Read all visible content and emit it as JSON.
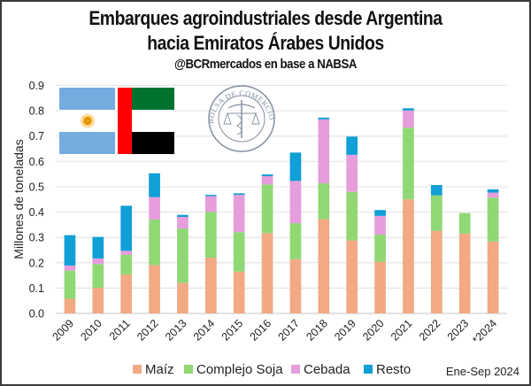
{
  "header": {
    "title_line1": "Embarques agroindustriales desde Argentina",
    "title_line2": "hacia Emiratos Árabes Unidos",
    "subtitle": "@BCRmercados en base a NABSA"
  },
  "decorations": {
    "flags": [
      "argentina-flag",
      "uae-flag"
    ],
    "seal_text": "BOLSA DE COMERCIO DE ROSARIO"
  },
  "note": "Ene-Sep 2024",
  "colors": {
    "Maíz": "#f2a984",
    "Complejo Soja": "#8fd874",
    "Cebada": "#e59ddc",
    "Resto": "#109fd6"
  },
  "chart_data": {
    "type": "bar",
    "stacked": true,
    "title": "Embarques agroindustriales desde Argentina hacia Emiratos Árabes Unidos",
    "subtitle": "@BCRmercados en base a NABSA",
    "xlabel": "",
    "ylabel": "Millones de toneladas",
    "ylim": [
      0,
      0.9
    ],
    "yticks": [
      "0.0",
      "0.1",
      "0.2",
      "0.3",
      "0.4",
      "0.5",
      "0.6",
      "0.7",
      "0.8",
      "0.9"
    ],
    "grid": true,
    "legend_position": "bottom",
    "categories": [
      "2009",
      "2010",
      "2011",
      "2012",
      "2013",
      "2014",
      "2015",
      "2016",
      "2017",
      "2018",
      "2019",
      "2020",
      "2021",
      "2022",
      "2023",
      "*2024"
    ],
    "series": [
      {
        "name": "Maíz",
        "values": [
          0.058,
          0.101,
          0.154,
          0.191,
          0.121,
          0.22,
          0.165,
          0.317,
          0.214,
          0.372,
          0.288,
          0.204,
          0.45,
          0.326,
          0.315,
          0.284
        ]
      },
      {
        "name": "Complejo Soja",
        "values": [
          0.111,
          0.094,
          0.077,
          0.18,
          0.214,
          0.181,
          0.156,
          0.192,
          0.142,
          0.142,
          0.192,
          0.107,
          0.283,
          0.14,
          0.081,
          0.173
        ]
      },
      {
        "name": "Cebada",
        "values": [
          0.02,
          0.022,
          0.016,
          0.088,
          0.046,
          0.062,
          0.147,
          0.033,
          0.167,
          0.252,
          0.146,
          0.074,
          0.068,
          0.0,
          0.0,
          0.02
        ]
      },
      {
        "name": "Resto",
        "values": [
          0.12,
          0.085,
          0.178,
          0.094,
          0.008,
          0.005,
          0.006,
          0.007,
          0.112,
          0.007,
          0.072,
          0.023,
          0.009,
          0.041,
          0.0,
          0.013
        ]
      }
    ],
    "annotations": [
      "Ene-Sep 2024"
    ]
  }
}
